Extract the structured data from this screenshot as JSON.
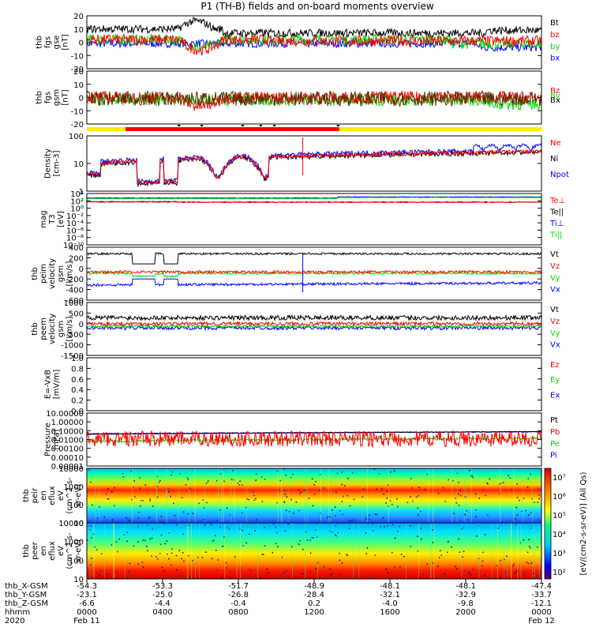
{
  "title": "P1 (TH-B) fields and on-board moments overview",
  "colors": {
    "black": "#000000",
    "red": "#ff0000",
    "green": "#00dd00",
    "blue": "#0000ff",
    "yellow": "#ffee00"
  },
  "colorbar": {
    "label": "[eV/(cm2-s-sr-eV)] (All Qs)",
    "ticks": [
      "10²",
      "10³",
      "10⁴",
      "10⁵",
      "10⁶",
      "10⁷"
    ]
  },
  "orbit_table": {
    "row_labels": [
      "thb_X-GSM",
      "thb_Y-GSM",
      "thb_Z-GSM",
      "hhmm",
      "2020"
    ],
    "x_gsm": [
      "-54.3",
      "-53.3",
      "-51.7",
      "-48.9",
      "-48.1",
      "-48.1",
      "-47.4"
    ],
    "y_gsm": [
      "-23.1",
      "-25.0",
      "-26.8",
      "-28.4",
      "-32.1",
      "-32.9",
      "-33.7"
    ],
    "z_gsm": [
      "-6.6",
      "-4.4",
      "-0.4",
      "0.2",
      "-4.0",
      "-9.8",
      "-12.1"
    ],
    "hhmm": [
      "0000",
      "0400",
      "0800",
      "1200",
      "1600",
      "2000",
      "0000"
    ],
    "dates": [
      "Feb 11",
      "Feb 12"
    ]
  },
  "chart_data": [
    {
      "type": "line",
      "name": "fgs-gse",
      "ylabel": [
        "thb",
        "fgs",
        "gse",
        "[nT]"
      ],
      "ytick_labels": [
        "20",
        "10",
        "0",
        "-10",
        "-20"
      ],
      "ylim": [
        -20,
        20
      ],
      "legend": [
        "Bt",
        "bz",
        "by",
        "bx"
      ]
    },
    {
      "type": "line",
      "name": "fgs-gsm",
      "ylabel": [
        "thb",
        "fgs",
        "gsm",
        "[nT]"
      ],
      "ytick_labels": [
        "20",
        "10",
        "0",
        "-10",
        "-20"
      ],
      "ylim": [
        -25,
        25
      ],
      "legend": [
        "Bz",
        "By",
        "Bx"
      ]
    },
    {
      "type": "bar",
      "name": "mode-bar"
    },
    {
      "type": "line",
      "name": "density",
      "ylabel": [
        "Density",
        "[cm-3]"
      ],
      "ylog": true,
      "ytick_labels": [
        "100",
        "10",
        "1"
      ],
      "ylim": [
        0.5,
        250
      ],
      "legend": [
        "Ne",
        "Ni",
        "Npot"
      ]
    },
    {
      "type": "line",
      "name": "temperature",
      "ylabel": [
        "mag",
        "T3",
        "[eV]"
      ],
      "ylog": true,
      "ytick_labels": [
        "10⁴",
        "10²",
        "10⁰",
        "10⁻²",
        "10⁻⁴",
        "10⁻⁶",
        "10⁻⁸",
        "10⁻¹⁰"
      ],
      "ylim": [
        1e-10,
        10000.0
      ],
      "legend": [
        "Te⊥",
        "Te||",
        "Ti⊥",
        "Ti||"
      ]
    },
    {
      "type": "line",
      "name": "ion-velocity",
      "ylabel": [
        "thb",
        "peim",
        "velocity",
        "gsm",
        "[km/s]"
      ],
      "ytick_labels": [
        "400",
        "200",
        "0",
        "-200",
        "-400",
        "-600"
      ],
      "ylim": [
        -600,
        450
      ],
      "legend": [
        "Vt",
        "Vz",
        "Vy",
        "Vx"
      ]
    },
    {
      "type": "line",
      "name": "electron-velocity",
      "ylabel": [
        "thb",
        "peem",
        "velocity",
        "gsm",
        "[km/s]"
      ],
      "ytick_labels": [
        "1000",
        "500",
        "0",
        "-500",
        "-1000",
        "-1500"
      ],
      "ylim": [
        -1500,
        1000
      ],
      "legend": [
        "Vt",
        "Vz",
        "Vy",
        "Vx"
      ]
    },
    {
      "type": "line",
      "name": "e-field",
      "ylabel": [
        "E=-VxB",
        "[mV/m]"
      ],
      "ytick_labels": [
        "1.0",
        "0.8",
        "0.6",
        "0.4",
        "0.2",
        "0.0"
      ],
      "ylim": [
        0,
        1
      ],
      "legend": [
        "Ez",
        "Ey",
        "Ex"
      ]
    },
    {
      "type": "line",
      "name": "pressure",
      "ylabel": [
        "Pressure",
        "[nPa]"
      ],
      "ylog": true,
      "ytick_labels": [
        "10.00000",
        "1.00000",
        "0.10000",
        "0.01000",
        "0.00100",
        "0.00010",
        "0.00001"
      ],
      "ylim": [
        1e-05,
        10
      ],
      "legend": [
        "Pt",
        "Pb",
        "Pe",
        "Pi"
      ]
    },
    {
      "type": "heatmap",
      "name": "ion-spectrogram",
      "ylabel": [
        "thb",
        "peir",
        "en",
        "eflux",
        "eV",
        "(cm^2-s-",
        "sr-eV)"
      ],
      "ytick_labels": [
        "10000",
        "1000",
        "100",
        "10"
      ],
      "ylog": true,
      "ylim": [
        5,
        30000
      ]
    },
    {
      "type": "heatmap",
      "name": "electron-spectrogram",
      "ylabel": [
        "thb",
        "peer",
        "en",
        "eflux",
        "eV",
        "(cm^2-s-",
        "sr-eV)"
      ],
      "ytick_labels": [
        "10000",
        "1000",
        "100",
        "10"
      ],
      "ylog": true,
      "ylim": [
        5,
        30000
      ]
    }
  ]
}
